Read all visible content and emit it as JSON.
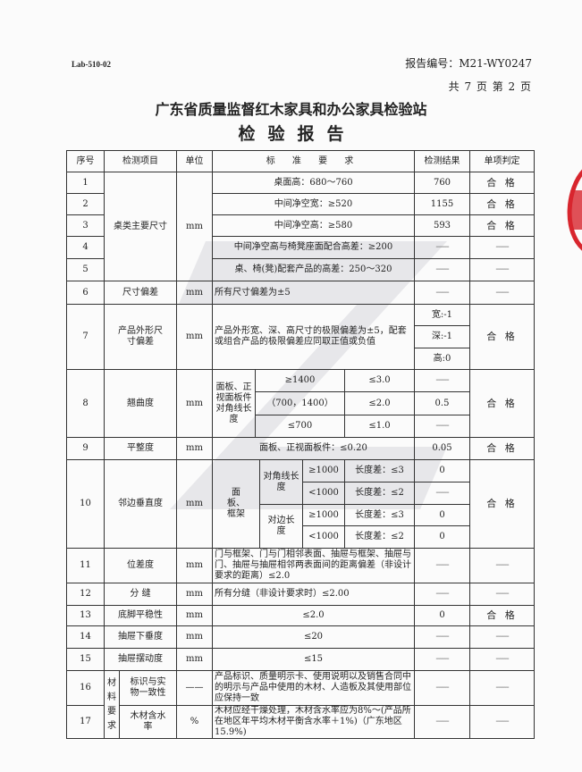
{
  "header": {
    "lab_code": "Lab-510-02",
    "report_no": "报告编号：M21-WY0247",
    "pages": "共 7 页 第 2 页",
    "org": "广东省质量监督红木家具和办公家具检验站",
    "title": "检验报告"
  },
  "colors": {
    "stamp": "#d8262e",
    "watermark": "#8a8a9a"
  },
  "columns": [
    "序号",
    "检测项目",
    "单位",
    "标 准 要 求",
    "检测结果",
    "单项判定"
  ],
  "dash": "------",
  "rows": {
    "r1": {
      "no": "1",
      "item": "桌类主要尺寸",
      "unit": "mm",
      "std": "桌面高：680～760",
      "result": "760",
      "verdict": "合 格"
    },
    "r2": {
      "no": "2",
      "std": "中间净空宽：≥520",
      "result": "1155",
      "verdict": "合 格"
    },
    "r3": {
      "no": "3",
      "std": "中间净空高：≥580",
      "result": "593",
      "verdict": "合 格"
    },
    "r4": {
      "no": "4",
      "std": "中间净空高与椅凳座面配合高差：≥200"
    },
    "r5": {
      "no": "5",
      "std": "桌、椅(凳)配套产品的高差：250～320"
    },
    "r6": {
      "no": "6",
      "item": "尺寸偏差",
      "unit": "mm",
      "std": "所有尺寸偏差为±5"
    },
    "r7": {
      "no": "7",
      "item": "产品外形尺寸偏差",
      "unit": "mm",
      "std": "产品外形宽、深、高尺寸的极限偏差为±5，配套或组合产品的极限偏差应同取正值或负值",
      "results": [
        "宽:-1",
        "深:-1",
        "高:0"
      ],
      "verdict": "合 格"
    },
    "r8": {
      "no": "8",
      "item": "翘曲度",
      "unit": "mm",
      "label": "面板、正视面板件对角线长度",
      "ranges": [
        "≥1400",
        "（700，1400）",
        "≤700"
      ],
      "limits": [
        "≤3.0",
        "≤2.0",
        "≤1.0"
      ],
      "results": [
        "------",
        "0.5",
        "------"
      ],
      "verdict": "合 格"
    },
    "r9": {
      "no": "9",
      "item": "平整度",
      "unit": "mm",
      "std": "面板、正视面板件：≤0.20",
      "result": "0.05",
      "verdict": "合 格"
    },
    "r10": {
      "no": "10",
      "item": "邻边垂直度",
      "unit": "mm",
      "label": "面板、框架",
      "sub1": "对角线长度",
      "sub2": "对边长度",
      "ranges": [
        "≥1000",
        "<1000",
        "≥1000",
        "<1000"
      ],
      "limits": [
        "长度差：≤3",
        "长度差：≤2",
        "长度差：≤3",
        "长度差：≤2"
      ],
      "results": [
        "0",
        "------",
        "0",
        "0"
      ],
      "verdict": "合 格"
    },
    "r11": {
      "no": "11",
      "item": "位差度",
      "unit": "mm",
      "std": "门与框架、门与门相邻表面、抽屉与框架、抽屉与门、抽屉与抽屉相邻两表面间的距离偏差（非设计要求的距离）≤2.0"
    },
    "r12": {
      "no": "12",
      "item": "分 缝",
      "unit": "mm",
      "std": "所有分缝（非设计要求时）≤2.00"
    },
    "r13": {
      "no": "13",
      "item": "底脚平稳性",
      "unit": "mm",
      "std": "≤2.0",
      "result": "0",
      "verdict": "合 格"
    },
    "r14": {
      "no": "14",
      "item": "抽屉下垂度",
      "unit": "mm",
      "std": "≤20"
    },
    "r15": {
      "no": "15",
      "item": "抽屉摆动度",
      "unit": "mm",
      "std": "≤15"
    },
    "r16": {
      "no": "16",
      "group": "材料要求",
      "item": "标识与实物一致性",
      "unit": "——",
      "std": "产品标识、质量明示卡、使用说明以及销售合同中的明示与产品中使用的木材、人造板及其使用部位应保持一致"
    },
    "r17": {
      "no": "17",
      "item": "木材含水率",
      "unit": "%",
      "std": "木材应经干燥处理，木材含水率应为8%～(产品所在地区年平均木材平衡含水率＋1%)（广东地区15.9%)"
    }
  }
}
